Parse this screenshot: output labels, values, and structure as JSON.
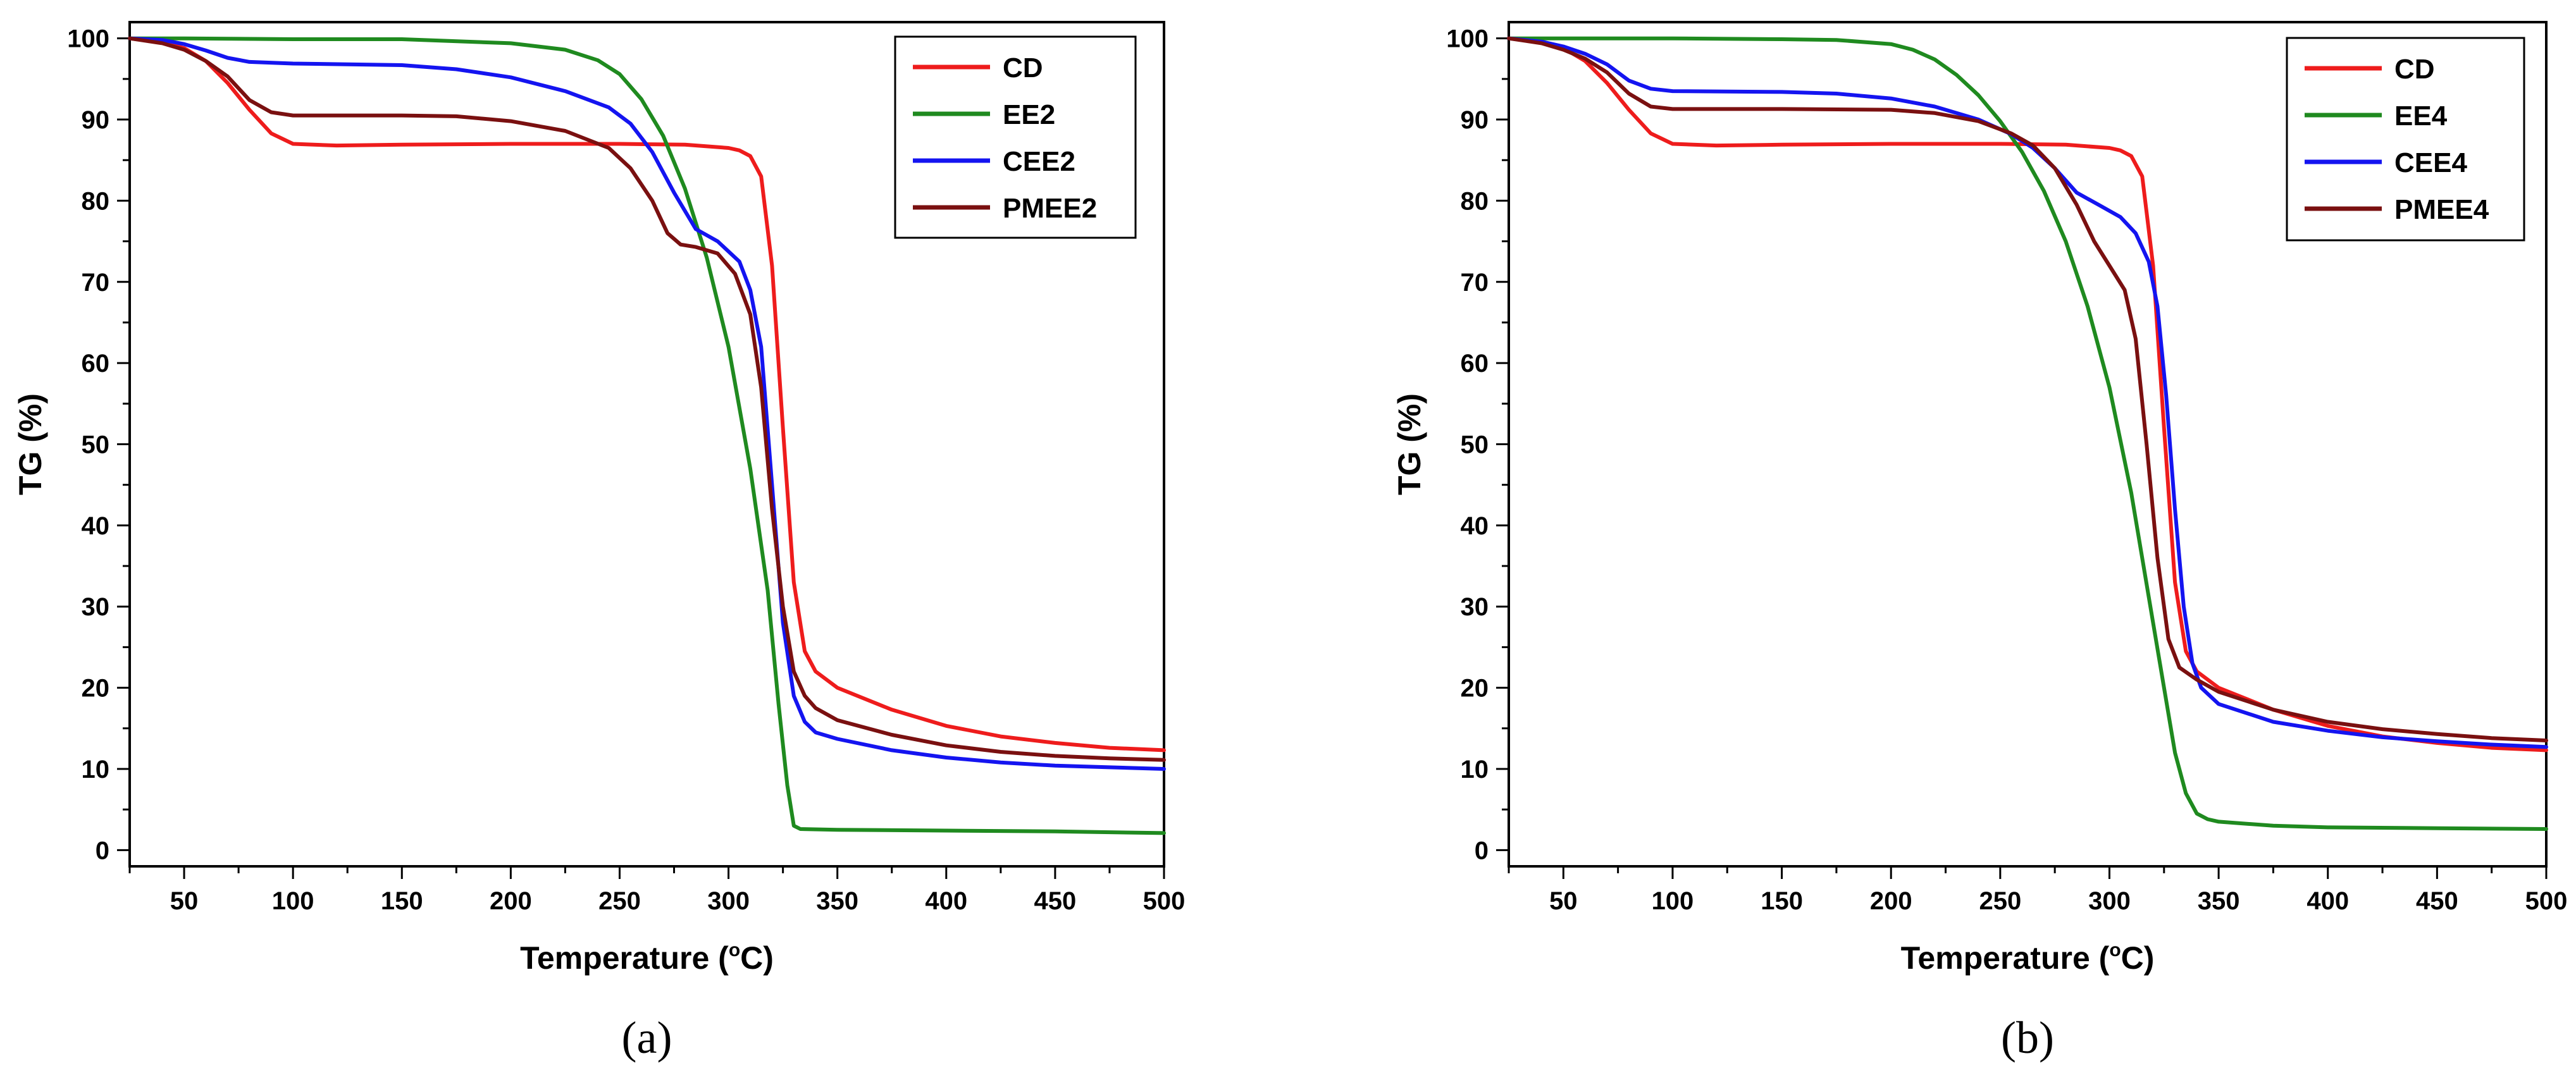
{
  "chart_data": [
    {
      "panel": "(a)",
      "type": "line",
      "title": "",
      "xlabel": "Temperature (°C)",
      "xlabel_main": "Temperature (",
      "xlabel_degree": "o",
      "xlabel_unit": "C)",
      "ylabel": "TG (%)",
      "xlim": [
        25,
        500
      ],
      "ylim": [
        -2,
        102
      ],
      "xticks": [
        50,
        100,
        150,
        200,
        250,
        300,
        350,
        400,
        450,
        500
      ],
      "yticks": [
        0,
        10,
        20,
        30,
        40,
        50,
        60,
        70,
        80,
        90,
        100
      ],
      "legend_position": "top-right",
      "series": [
        {
          "name": "CD",
          "color": "#ee1c1c",
          "points": [
            [
              25,
              100
            ],
            [
              40,
              99.5
            ],
            [
              50,
              98.8
            ],
            [
              60,
              97.2
            ],
            [
              70,
              94.5
            ],
            [
              80,
              91.2
            ],
            [
              90,
              88.3
            ],
            [
              100,
              87
            ],
            [
              120,
              86.8
            ],
            [
              150,
              86.9
            ],
            [
              200,
              87
            ],
            [
              250,
              87
            ],
            [
              280,
              86.9
            ],
            [
              300,
              86.5
            ],
            [
              305,
              86.2
            ],
            [
              310,
              85.5
            ],
            [
              315,
              83
            ],
            [
              320,
              72
            ],
            [
              325,
              52
            ],
            [
              330,
              33
            ],
            [
              335,
              24.5
            ],
            [
              340,
              22
            ],
            [
              350,
              20
            ],
            [
              375,
              17.3
            ],
            [
              400,
              15.3
            ],
            [
              425,
              14
            ],
            [
              450,
              13.2
            ],
            [
              475,
              12.6
            ],
            [
              500,
              12.3
            ]
          ]
        },
        {
          "name": "EE2",
          "color": "#1f8a1f",
          "points": [
            [
              25,
              100
            ],
            [
              50,
              100
            ],
            [
              100,
              99.9
            ],
            [
              150,
              99.9
            ],
            [
              200,
              99.4
            ],
            [
              225,
              98.6
            ],
            [
              240,
              97.3
            ],
            [
              250,
              95.6
            ],
            [
              260,
              92.5
            ],
            [
              270,
              88
            ],
            [
              280,
              81.5
            ],
            [
              290,
              73
            ],
            [
              300,
              62
            ],
            [
              310,
              47
            ],
            [
              318,
              32
            ],
            [
              323,
              18
            ],
            [
              327,
              8
            ],
            [
              330,
              3
            ],
            [
              333,
              2.6
            ],
            [
              350,
              2.5
            ],
            [
              400,
              2.4
            ],
            [
              450,
              2.3
            ],
            [
              500,
              2.1
            ]
          ]
        },
        {
          "name": "CEE2",
          "color": "#1414f0",
          "points": [
            [
              25,
              100
            ],
            [
              40,
              99.8
            ],
            [
              50,
              99.3
            ],
            [
              60,
              98.5
            ],
            [
              70,
              97.6
            ],
            [
              80,
              97.1
            ],
            [
              100,
              96.9
            ],
            [
              150,
              96.7
            ],
            [
              175,
              96.2
            ],
            [
              200,
              95.2
            ],
            [
              225,
              93.5
            ],
            [
              245,
              91.5
            ],
            [
              255,
              89.5
            ],
            [
              265,
              86
            ],
            [
              275,
              81
            ],
            [
              285,
              76.5
            ],
            [
              295,
              75
            ],
            [
              305,
              72.5
            ],
            [
              310,
              69
            ],
            [
              315,
              62
            ],
            [
              320,
              45
            ],
            [
              325,
              28
            ],
            [
              330,
              19
            ],
            [
              335,
              15.8
            ],
            [
              340,
              14.5
            ],
            [
              350,
              13.7
            ],
            [
              375,
              12.3
            ],
            [
              400,
              11.4
            ],
            [
              425,
              10.8
            ],
            [
              450,
              10.4
            ],
            [
              475,
              10.2
            ],
            [
              500,
              10
            ]
          ]
        },
        {
          "name": "PMEE2",
          "color": "#7a1010",
          "points": [
            [
              25,
              100
            ],
            [
              40,
              99.4
            ],
            [
              50,
              98.6
            ],
            [
              60,
              97.2
            ],
            [
              70,
              95.3
            ],
            [
              80,
              92.4
            ],
            [
              90,
              90.9
            ],
            [
              100,
              90.5
            ],
            [
              150,
              90.5
            ],
            [
              175,
              90.4
            ],
            [
              200,
              89.8
            ],
            [
              225,
              88.6
            ],
            [
              245,
              86.5
            ],
            [
              255,
              84
            ],
            [
              265,
              80
            ],
            [
              272,
              76
            ],
            [
              278,
              74.6
            ],
            [
              285,
              74.3
            ],
            [
              295,
              73.5
            ],
            [
              303,
              71
            ],
            [
              310,
              66
            ],
            [
              315,
              57
            ],
            [
              320,
              42
            ],
            [
              325,
              30
            ],
            [
              330,
              22
            ],
            [
              335,
              19
            ],
            [
              340,
              17.5
            ],
            [
              350,
              16
            ],
            [
              375,
              14.2
            ],
            [
              400,
              12.9
            ],
            [
              425,
              12.1
            ],
            [
              450,
              11.6
            ],
            [
              475,
              11.3
            ],
            [
              500,
              11.1
            ]
          ]
        }
      ]
    },
    {
      "panel": "(b)",
      "type": "line",
      "title": "",
      "xlabel": "Temperature (°C)",
      "xlabel_main": "Temperature (",
      "xlabel_degree": "o",
      "xlabel_unit": "C)",
      "ylabel": "TG (%)",
      "xlim": [
        25,
        500
      ],
      "ylim": [
        -2,
        102
      ],
      "xticks": [
        50,
        100,
        150,
        200,
        250,
        300,
        350,
        400,
        450,
        500
      ],
      "yticks": [
        0,
        10,
        20,
        30,
        40,
        50,
        60,
        70,
        80,
        90,
        100
      ],
      "legend_position": "top-right",
      "series": [
        {
          "name": "CD",
          "color": "#ee1c1c",
          "points": [
            [
              25,
              100
            ],
            [
              40,
              99.5
            ],
            [
              50,
              98.8
            ],
            [
              60,
              97.2
            ],
            [
              70,
              94.5
            ],
            [
              80,
              91.2
            ],
            [
              90,
              88.3
            ],
            [
              100,
              87
            ],
            [
              120,
              86.8
            ],
            [
              150,
              86.9
            ],
            [
              200,
              87
            ],
            [
              250,
              87
            ],
            [
              280,
              86.9
            ],
            [
              300,
              86.5
            ],
            [
              305,
              86.2
            ],
            [
              310,
              85.5
            ],
            [
              315,
              83
            ],
            [
              320,
              72
            ],
            [
              325,
              52
            ],
            [
              330,
              33
            ],
            [
              335,
              24.5
            ],
            [
              340,
              22
            ],
            [
              350,
              20
            ],
            [
              375,
              17.3
            ],
            [
              400,
              15.3
            ],
            [
              425,
              14
            ],
            [
              450,
              13.2
            ],
            [
              475,
              12.6
            ],
            [
              500,
              12.3
            ]
          ]
        },
        {
          "name": "EE4",
          "color": "#1f8a1f",
          "points": [
            [
              25,
              100
            ],
            [
              50,
              100
            ],
            [
              100,
              100
            ],
            [
              150,
              99.9
            ],
            [
              175,
              99.8
            ],
            [
              200,
              99.3
            ],
            [
              210,
              98.6
            ],
            [
              220,
              97.4
            ],
            [
              230,
              95.5
            ],
            [
              240,
              93
            ],
            [
              250,
              89.8
            ],
            [
              260,
              86
            ],
            [
              270,
              81.2
            ],
            [
              280,
              75
            ],
            [
              290,
              67
            ],
            [
              300,
              57
            ],
            [
              310,
              44
            ],
            [
              320,
              28
            ],
            [
              325,
              20
            ],
            [
              330,
              12
            ],
            [
              335,
              7
            ],
            [
              340,
              4.5
            ],
            [
              345,
              3.8
            ],
            [
              350,
              3.5
            ],
            [
              375,
              3
            ],
            [
              400,
              2.8
            ],
            [
              450,
              2.7
            ],
            [
              500,
              2.6
            ]
          ]
        },
        {
          "name": "CEE4",
          "color": "#1414f0",
          "points": [
            [
              25,
              100
            ],
            [
              40,
              99.6
            ],
            [
              50,
              99
            ],
            [
              60,
              98.1
            ],
            [
              70,
              96.8
            ],
            [
              80,
              94.8
            ],
            [
              90,
              93.8
            ],
            [
              100,
              93.5
            ],
            [
              150,
              93.4
            ],
            [
              175,
              93.2
            ],
            [
              200,
              92.6
            ],
            [
              220,
              91.6
            ],
            [
              240,
              90
            ],
            [
              255,
              88.2
            ],
            [
              265,
              86.5
            ],
            [
              275,
              84
            ],
            [
              285,
              81
            ],
            [
              295,
              79.5
            ],
            [
              305,
              78
            ],
            [
              312,
              76
            ],
            [
              318,
              72.5
            ],
            [
              322,
              67
            ],
            [
              326,
              56
            ],
            [
              330,
              42
            ],
            [
              334,
              30
            ],
            [
              338,
              23
            ],
            [
              342,
              20
            ],
            [
              350,
              18
            ],
            [
              375,
              15.8
            ],
            [
              400,
              14.7
            ],
            [
              425,
              13.9
            ],
            [
              450,
              13.4
            ],
            [
              475,
              13
            ],
            [
              500,
              12.7
            ]
          ]
        },
        {
          "name": "PMEE4",
          "color": "#7a1010",
          "points": [
            [
              25,
              100
            ],
            [
              40,
              99.4
            ],
            [
              50,
              98.6
            ],
            [
              60,
              97.5
            ],
            [
              70,
              95.8
            ],
            [
              80,
              93.2
            ],
            [
              90,
              91.6
            ],
            [
              100,
              91.3
            ],
            [
              150,
              91.3
            ],
            [
              200,
              91.2
            ],
            [
              220,
              90.8
            ],
            [
              240,
              89.8
            ],
            [
              255,
              88.3
            ],
            [
              265,
              86.8
            ],
            [
              275,
              84
            ],
            [
              285,
              79.5
            ],
            [
              293,
              75
            ],
            [
              300,
              72
            ],
            [
              307,
              69
            ],
            [
              312,
              63
            ],
            [
              317,
              50
            ],
            [
              322,
              36
            ],
            [
              327,
              26
            ],
            [
              332,
              22.5
            ],
            [
              340,
              21
            ],
            [
              350,
              19.5
            ],
            [
              375,
              17.3
            ],
            [
              400,
              15.8
            ],
            [
              425,
              14.9
            ],
            [
              450,
              14.3
            ],
            [
              475,
              13.8
            ],
            [
              500,
              13.5
            ]
          ]
        }
      ]
    }
  ]
}
